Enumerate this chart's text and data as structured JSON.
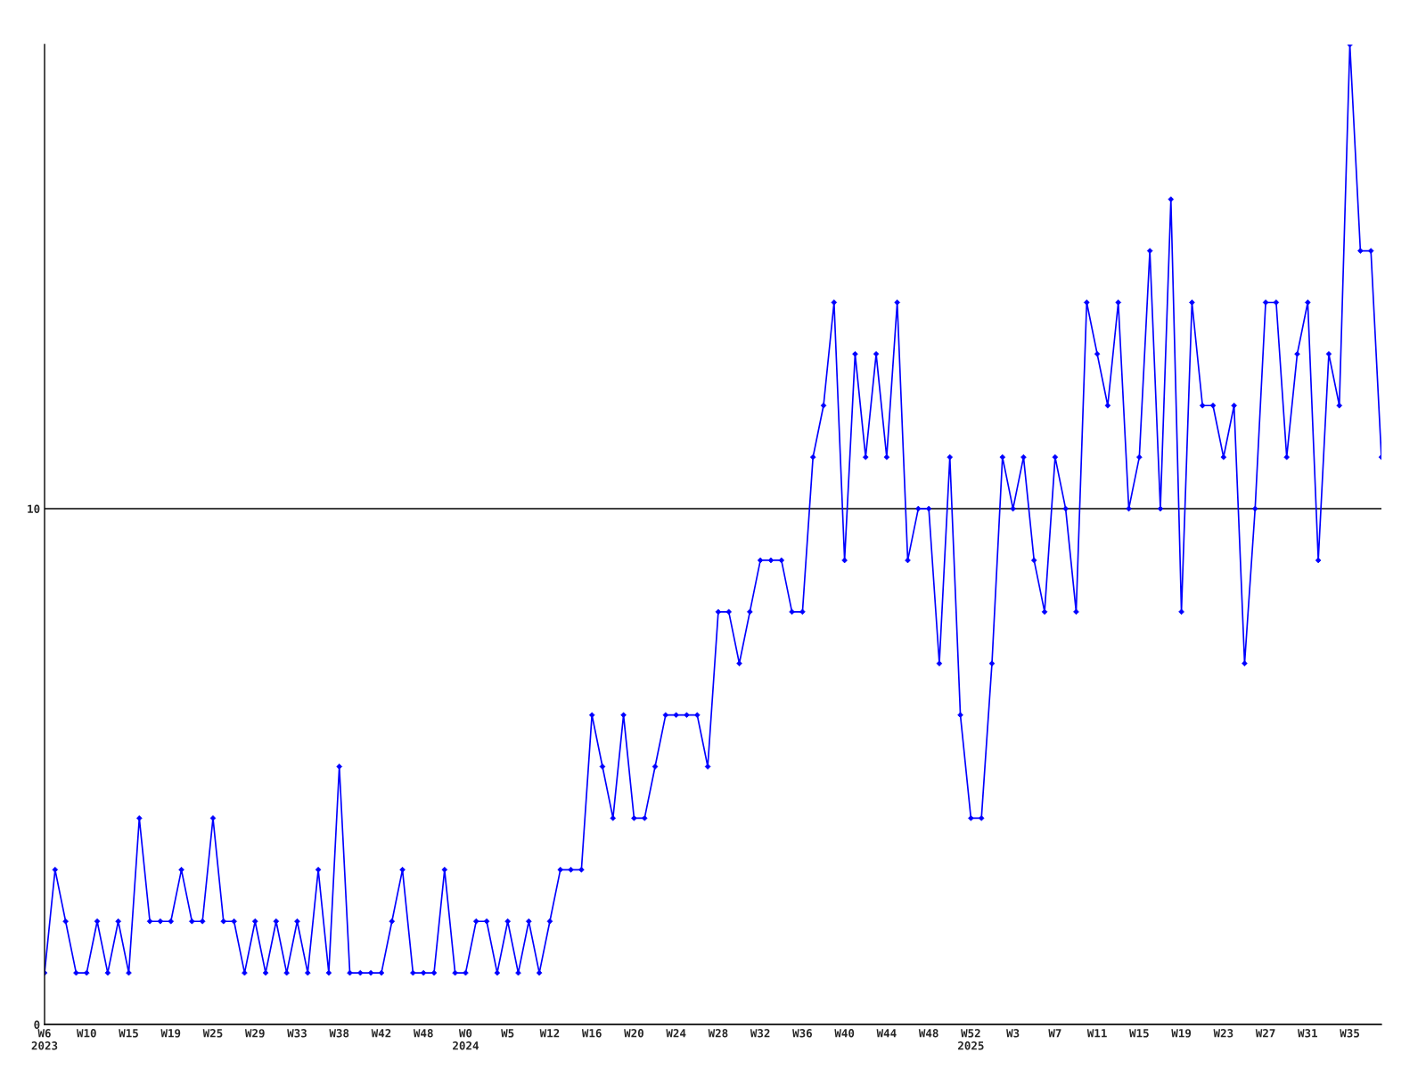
{
  "chart_data": {
    "type": "line",
    "categories": [
      "W6\n2023",
      null,
      null,
      null,
      "W10",
      null,
      null,
      null,
      "W15",
      null,
      null,
      null,
      "W19",
      null,
      null,
      null,
      "W25",
      null,
      null,
      null,
      "W29",
      null,
      null,
      null,
      "W33",
      null,
      null,
      null,
      "W38",
      null,
      null,
      null,
      "W42",
      null,
      null,
      null,
      "W48",
      null,
      null,
      null,
      "W0\n2024",
      null,
      null,
      null,
      "W5",
      null,
      null,
      null,
      "W12",
      null,
      null,
      null,
      "W16",
      null,
      null,
      null,
      "W20",
      null,
      null,
      null,
      "W24",
      null,
      null,
      null,
      "W28",
      null,
      null,
      null,
      "W32",
      null,
      null,
      null,
      "W36",
      null,
      null,
      null,
      "W40",
      null,
      null,
      null,
      "W44",
      null,
      null,
      null,
      "W48",
      null,
      null,
      null,
      "W52\n2025",
      null,
      null,
      null,
      "W3",
      null,
      null,
      null,
      "W7",
      null,
      null,
      null,
      "W11",
      null,
      null,
      null,
      "W15",
      null,
      null,
      null,
      "W19",
      null,
      null,
      null,
      "W23",
      null,
      null,
      null,
      "W27",
      null,
      null,
      null,
      "W31",
      null,
      null,
      null,
      "W35",
      null,
      null,
      null
    ],
    "series": [
      {
        "color": "#0000ff",
        "values": [
          1,
          3,
          2,
          1,
          1,
          2,
          1,
          2,
          1,
          4,
          2,
          2,
          2,
          3,
          2,
          2,
          4,
          2,
          2,
          1,
          2,
          1,
          2,
          1,
          2,
          1,
          3,
          1,
          5,
          1,
          1,
          1,
          1,
          2,
          3,
          1,
          1,
          1,
          3,
          1,
          1,
          2,
          2,
          1,
          2,
          1,
          2,
          1,
          2,
          3,
          3,
          3,
          6,
          5,
          4,
          6,
          4,
          4,
          5,
          6,
          6,
          6,
          6,
          5,
          8,
          8,
          7,
          8,
          9,
          9,
          9,
          8,
          8,
          11,
          12,
          14,
          9,
          13,
          11,
          13,
          11,
          14,
          9,
          10,
          10,
          7,
          11,
          6,
          4,
          4,
          7,
          11,
          10,
          11,
          9,
          8,
          11,
          10,
          8,
          14,
          13,
          12,
          14,
          10,
          11,
          15,
          10,
          16,
          8,
          14,
          12,
          12,
          11,
          12,
          7,
          10,
          14,
          14,
          11,
          13,
          14,
          9,
          13,
          12,
          19,
          15,
          15,
          11
        ]
      }
    ],
    "ylim": [
      0,
      19
    ],
    "yticks": [
      0,
      10
    ],
    "grid": "y",
    "marker": "diamond",
    "line_style": "solid",
    "legend": false
  }
}
